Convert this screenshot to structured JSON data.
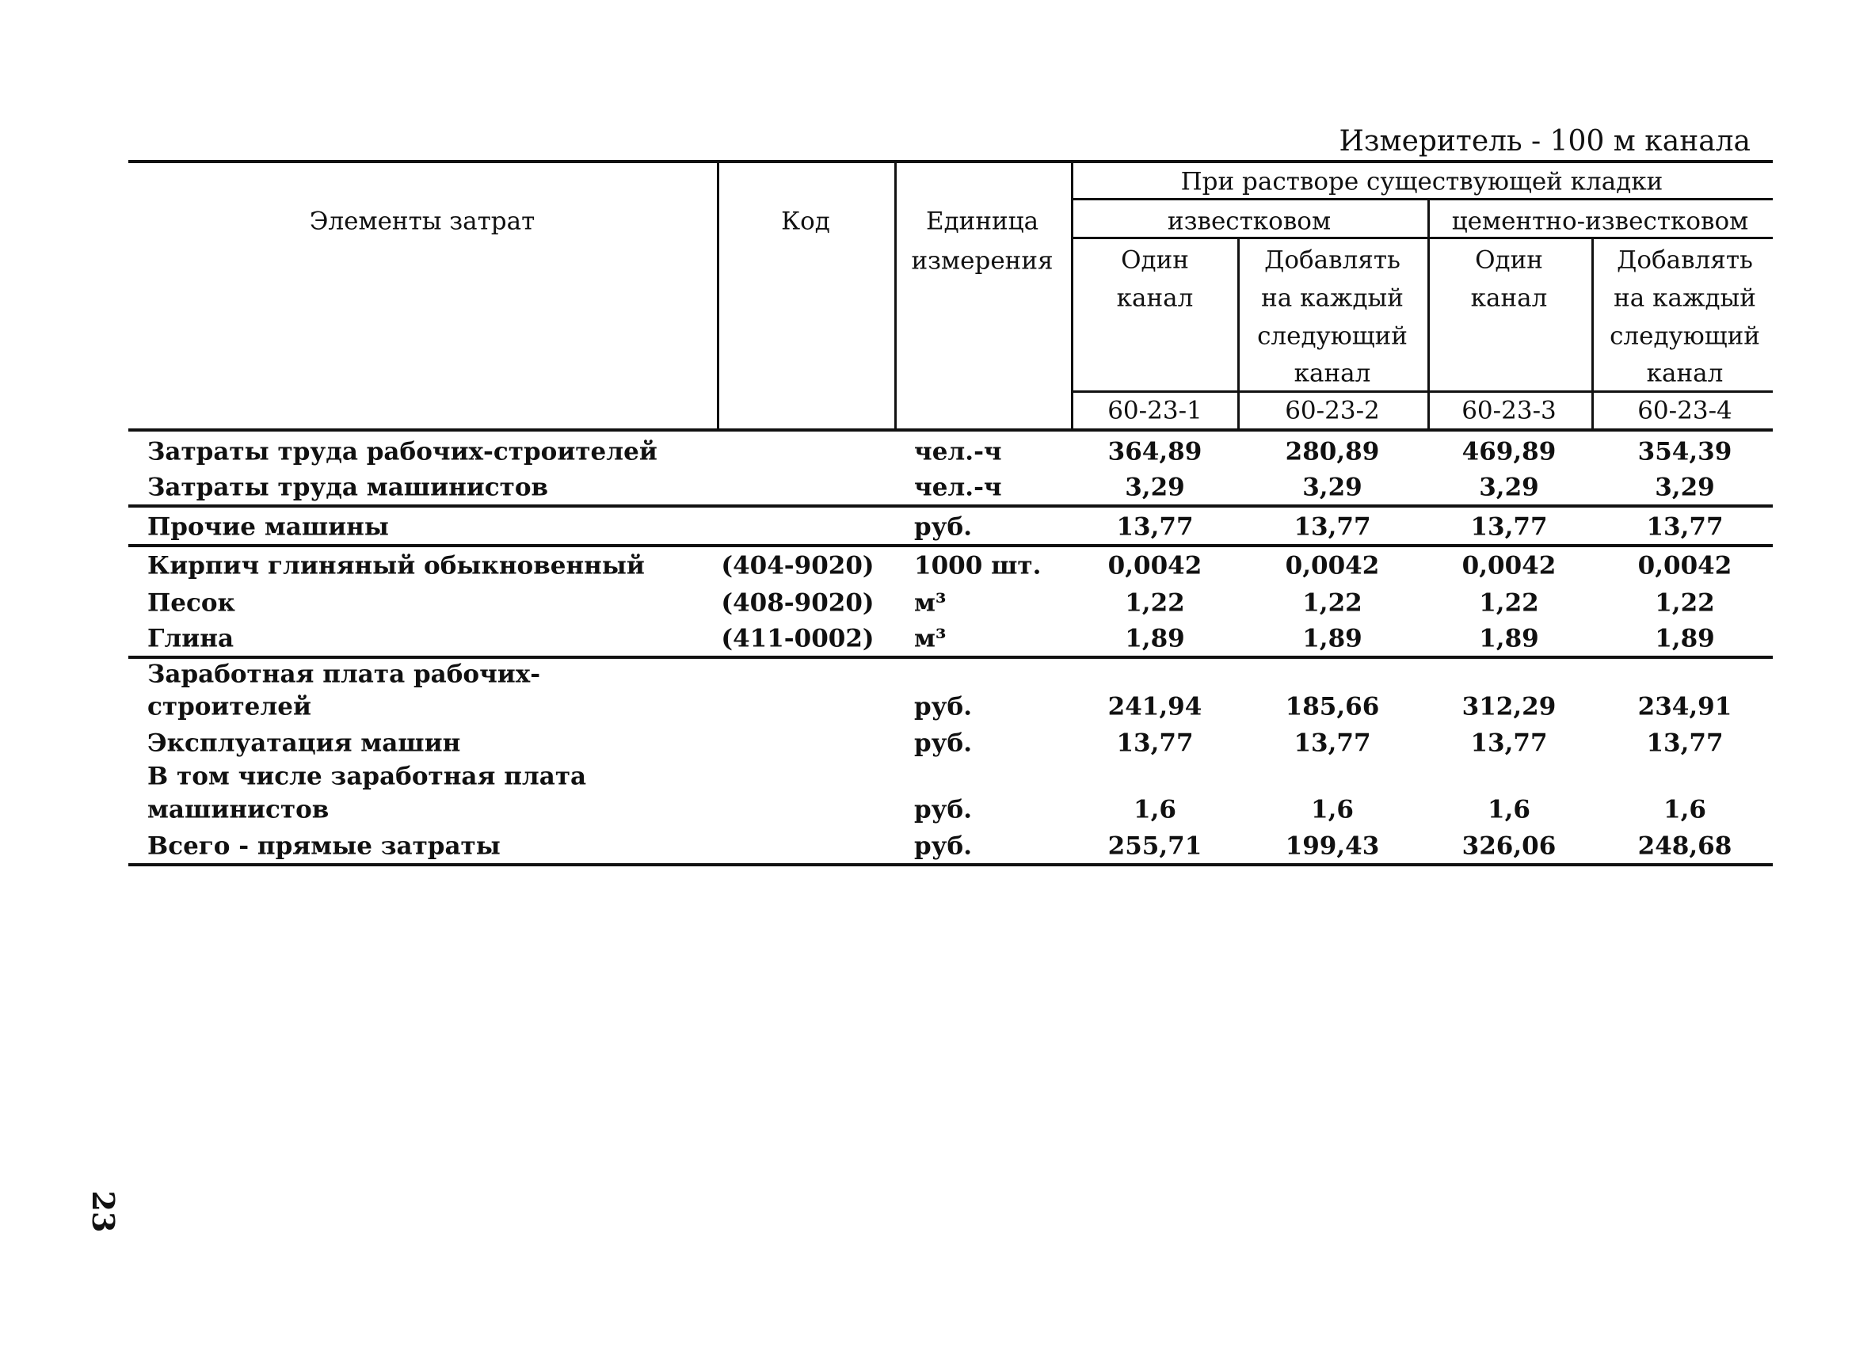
{
  "measure_unit": "Измеритель - 100 м канала",
  "header": {
    "elements": "Элементы затрат",
    "code": "Код",
    "unit_line1": "Единица",
    "unit_line2": "измерения",
    "group": "При растворе существующей кладки",
    "sub1": "известковом",
    "sub2": "цементно-известковом",
    "col_labels": [
      [
        "Один",
        "канал"
      ],
      [
        "Добавлять",
        "на каждый",
        "следующий",
        "канал"
      ],
      [
        "Один",
        "канал"
      ],
      [
        "Добавлять",
        "на каждый",
        "следующий",
        "канал"
      ]
    ],
    "col_codes": [
      "60-23-1",
      "60-23-2",
      "60-23-3",
      "60-23-4"
    ]
  },
  "rows": [
    {
      "label": [
        "Затраты труда рабочих-строителей"
      ],
      "code": "",
      "unit": "чел.-ч",
      "values": [
        "364,89",
        "280,89",
        "469,89",
        "354,39"
      ]
    },
    {
      "label": [
        "Затраты труда машинистов"
      ],
      "code": "",
      "unit": "чел.-ч",
      "values": [
        "3,29",
        "3,29",
        "3,29",
        "3,29"
      ]
    },
    {
      "label": [
        "Прочие машины"
      ],
      "code": "",
      "unit": "руб.",
      "values": [
        "13,77",
        "13,77",
        "13,77",
        "13,77"
      ]
    },
    {
      "label": [
        "Кирпич глиняный обыкновенный"
      ],
      "code": "(404-9020)",
      "unit": "1000 шт.",
      "values": [
        "0,0042",
        "0,0042",
        "0,0042",
        "0,0042"
      ]
    },
    {
      "label": [
        "Песок"
      ],
      "code": "(408-9020)",
      "unit": "м³",
      "values": [
        "1,22",
        "1,22",
        "1,22",
        "1,22"
      ]
    },
    {
      "label": [
        "Глина"
      ],
      "code": "(411-0002)",
      "unit": "м³",
      "values": [
        "1,89",
        "1,89",
        "1,89",
        "1,89"
      ]
    },
    {
      "label": [
        "Заработная плата рабочих-",
        "строителей"
      ],
      "code": "",
      "unit": "руб.",
      "values": [
        "241,94",
        "185,66",
        "312,29",
        "234,91"
      ]
    },
    {
      "label": [
        "Эксплуатация машин"
      ],
      "code": "",
      "unit": "руб.",
      "values": [
        "13,77",
        "13,77",
        "13,77",
        "13,77"
      ]
    },
    {
      "label": [
        "В том числе заработная плата",
        "машинистов"
      ],
      "code": "",
      "unit": "руб.",
      "values": [
        "1,6",
        "1,6",
        "1,6",
        "1,6"
      ]
    },
    {
      "label": [
        "Всего - прямые затраты"
      ],
      "code": "",
      "unit": "руб.",
      "values": [
        "255,71",
        "199,43",
        "326,06",
        "248,68"
      ]
    }
  ],
  "page_number": "23"
}
